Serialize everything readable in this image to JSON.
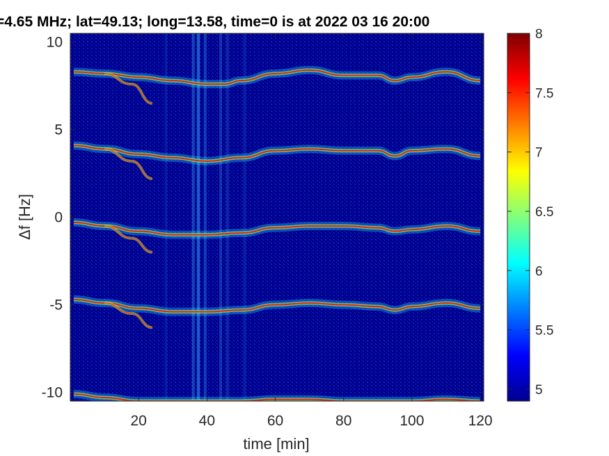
{
  "chart_data": {
    "type": "heatmap",
    "title": "=4.65 MHz;  lat=49.13; long=13.58, time=0 is at 2022 03 16 20:00",
    "xlabel": "time [min]",
    "ylabel": "Δf [Hz]",
    "xlim": [
      0,
      121
    ],
    "ylim": [
      -10.5,
      10.5
    ],
    "x_ticks": [
      20,
      40,
      60,
      80,
      100,
      120
    ],
    "x_tick_labels": [
      "20",
      "40",
      "60",
      "80",
      "100",
      "120"
    ],
    "y_ticks": [
      10,
      5,
      0,
      -5,
      -10
    ],
    "y_tick_labels": [
      "10",
      "5",
      "0",
      "-5",
      "-10"
    ],
    "colorbar": {
      "colormap": "jet",
      "range": [
        4.9,
        8.0
      ],
      "ticks": [
        8,
        7.5,
        7,
        6.5,
        6,
        5.5,
        5
      ],
      "tick_labels": [
        "8",
        "7.5",
        "7",
        "6.5",
        "6",
        "5.5",
        "5"
      ]
    },
    "background_color": "#00008f",
    "traces": [
      {
        "name": "",
        "x": [
          1,
          10,
          20,
          30,
          40,
          45,
          50,
          60,
          70,
          80,
          90,
          95,
          100,
          110,
          120
        ],
        "y": [
          8.3,
          8.2,
          8.0,
          7.8,
          7.6,
          7.6,
          7.8,
          8.2,
          8.4,
          8.1,
          8.1,
          7.8,
          8.0,
          8.3,
          7.8
        ]
      },
      {
        "name": "",
        "x": [
          1,
          10,
          20,
          30,
          40,
          50,
          60,
          70,
          80,
          90,
          95,
          100,
          110,
          120
        ],
        "y": [
          4.1,
          3.9,
          3.6,
          3.4,
          3.2,
          3.4,
          3.8,
          3.9,
          3.8,
          3.8,
          3.5,
          3.8,
          3.9,
          3.5
        ]
      },
      {
        "name": "",
        "x": [
          1,
          10,
          20,
          30,
          40,
          50,
          60,
          70,
          80,
          90,
          95,
          100,
          110,
          120
        ],
        "y": [
          -0.3,
          -0.5,
          -0.8,
          -1.0,
          -1.0,
          -0.9,
          -0.6,
          -0.5,
          -0.5,
          -0.6,
          -0.8,
          -0.7,
          -0.5,
          -0.8
        ]
      },
      {
        "name": "",
        "x": [
          1,
          10,
          20,
          30,
          40,
          50,
          60,
          70,
          80,
          90,
          95,
          100,
          110,
          120
        ],
        "y": [
          -4.7,
          -4.9,
          -5.2,
          -5.4,
          -5.4,
          -5.3,
          -5.0,
          -4.9,
          -5.0,
          -5.1,
          -5.3,
          -5.1,
          -4.9,
          -5.2
        ]
      },
      {
        "name": "",
        "x": [
          1,
          10,
          20,
          30,
          40,
          50,
          60,
          70,
          80,
          90,
          100,
          110,
          120
        ],
        "y": [
          -10.1,
          -10.3,
          -10.5,
          -10.5,
          -10.5,
          -10.5,
          -10.4,
          -10.4,
          -10.5,
          -10.5,
          -10.5,
          -10.4,
          -10.5
        ]
      }
    ],
    "branch_traces": [
      {
        "x": [
          10,
          18,
          24
        ],
        "y": [
          8.2,
          7.6,
          6.5
        ]
      },
      {
        "x": [
          10,
          18,
          24
        ],
        "y": [
          3.9,
          3.2,
          2.2
        ]
      },
      {
        "x": [
          10,
          18,
          24
        ],
        "y": [
          -0.5,
          -1.2,
          -2.0
        ]
      },
      {
        "x": [
          10,
          18,
          24
        ],
        "y": [
          -4.9,
          -5.5,
          -6.3
        ]
      }
    ]
  }
}
